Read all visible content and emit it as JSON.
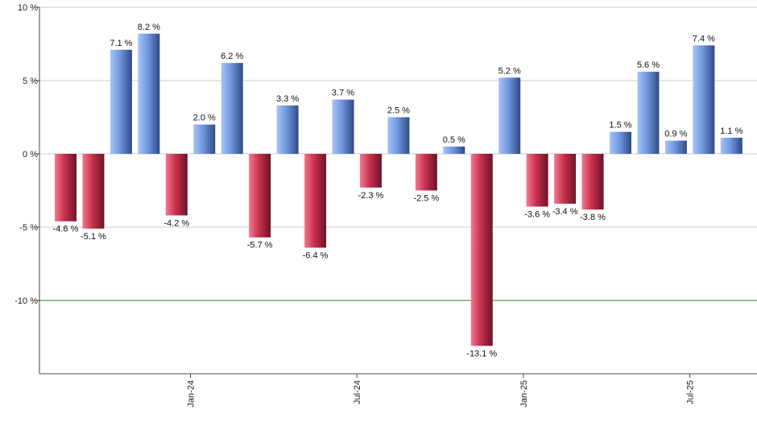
{
  "chart_data": {
    "type": "bar",
    "title": "",
    "xlabel": "",
    "ylabel": "",
    "ylim": [
      -15,
      10
    ],
    "y_ticks": [
      10,
      5,
      0,
      -5,
      -10
    ],
    "y_tick_labels": [
      "10 %",
      "5 %",
      "0 %",
      "-5 %",
      "-10 %"
    ],
    "reference_line": {
      "value": -10,
      "color": "#2e7d32"
    },
    "x_ticks": [
      {
        "after_bar": 4,
        "label": "Jan-24"
      },
      {
        "after_bar": 10,
        "label": "Jul-24"
      },
      {
        "after_bar": 16,
        "label": "Jan-25"
      },
      {
        "after_bar": 22,
        "label": "Jul-25"
      }
    ],
    "values": [
      -4.6,
      -5.1,
      7.1,
      8.2,
      -4.2,
      2.0,
      6.2,
      -5.7,
      3.3,
      -6.4,
      3.7,
      -2.3,
      2.5,
      -2.5,
      0.5,
      -13.1,
      5.2,
      -3.6,
      -3.4,
      -3.8,
      1.5,
      5.6,
      0.9,
      7.4,
      1.1
    ],
    "labels": [
      "-4.6 %",
      "-5.1 %",
      "7.1 %",
      "8.2 %",
      "-4.2 %",
      "2.0 %",
      "6.2 %",
      "-5.7 %",
      "3.3 %",
      "-6.4 %",
      "3.7 %",
      "-2.3 %",
      "2.5 %",
      "-2.5 %",
      "0.5 %",
      "-13.1 %",
      "5.2 %",
      "-3.6 %",
      "-3.4 %",
      "-3.8 %",
      "1.5 %",
      "5.6 %",
      "0.9 %",
      "7.4 %",
      "1.1 %"
    ],
    "colors": {
      "positive": "#6a8fd8",
      "negative": "#c8304e",
      "grid": "#cccccc",
      "axis": "#444444"
    }
  }
}
